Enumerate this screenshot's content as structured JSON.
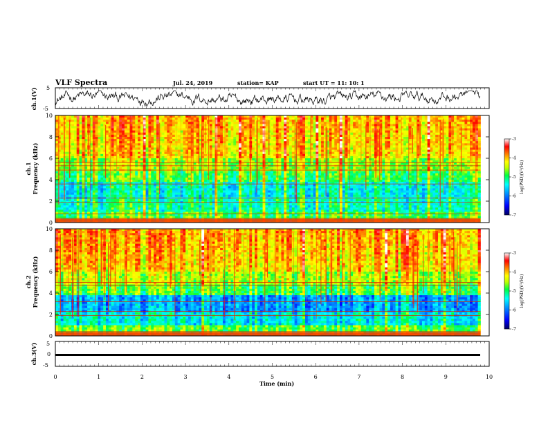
{
  "header": {
    "title": "VLF Spectra",
    "date": "Jul. 24, 2019",
    "station": "station= KAP",
    "start_ut": "start UT = 11: 10: 1"
  },
  "chart_data": [
    {
      "type": "line",
      "name": "ch1-waveform",
      "ylabel": "ch.1(V)",
      "ylim": [
        -5,
        5
      ],
      "yticks": [
        "5",
        "-5"
      ],
      "xlim": [
        0,
        10
      ],
      "color": "#000000"
    },
    {
      "type": "heatmap",
      "name": "ch1-spectrogram",
      "ylabel": "ch.1\nFrequency (kHz)",
      "ylim": [
        0,
        10
      ],
      "yticks": [
        "0",
        "2",
        "4",
        "6",
        "8",
        "10"
      ],
      "xlim": [
        0,
        9.8
      ],
      "colorbar": {
        "label": "log(PSD)(V²/Hz)",
        "range": [
          -7,
          -3
        ],
        "ticks": [
          "-3",
          "-4",
          "-5",
          "-6",
          "-7"
        ]
      },
      "narrowband_lines_khz": [
        0.4,
        0.8,
        1.9,
        2.3,
        3.6,
        4.9,
        5.3,
        5.6
      ]
    },
    {
      "type": "heatmap",
      "name": "ch2-spectrogram",
      "ylabel": "ch.2\nFrequency (kHz)",
      "ylim": [
        0,
        10
      ],
      "yticks": [
        "0",
        "2",
        "4",
        "6",
        "8",
        "10"
      ],
      "xlim": [
        0,
        9.8
      ],
      "colorbar": {
        "label": "log(PSD)(V²/Hz)",
        "range": [
          -7,
          -3
        ],
        "ticks": [
          "-3",
          "-4",
          "-5",
          "-6",
          "-7"
        ]
      },
      "narrowband_lines_khz": [
        0.4,
        1.9,
        2.3,
        3.2,
        4.7,
        5.0
      ]
    },
    {
      "type": "line",
      "name": "ch3-waveform",
      "ylabel": "ch.3(V)",
      "ylim": [
        -5,
        5
      ],
      "yticks": [
        "5",
        "0",
        "-5"
      ],
      "xlim": [
        0,
        10
      ],
      "constant_value": 0,
      "color": "#000000"
    }
  ],
  "xaxis": {
    "label": "Time (min)",
    "ticks": [
      "0",
      "1",
      "2",
      "3",
      "4",
      "5",
      "6",
      "7",
      "8",
      "9",
      "10"
    ],
    "range": [
      0,
      10
    ]
  },
  "colors": {
    "colormap": [
      "#000080",
      "#0000ff",
      "#0080ff",
      "#00e0ff",
      "#00ff80",
      "#40ff00",
      "#c0ff00",
      "#ffff00",
      "#ff8000",
      "#ff0000",
      "#ffffff"
    ]
  }
}
